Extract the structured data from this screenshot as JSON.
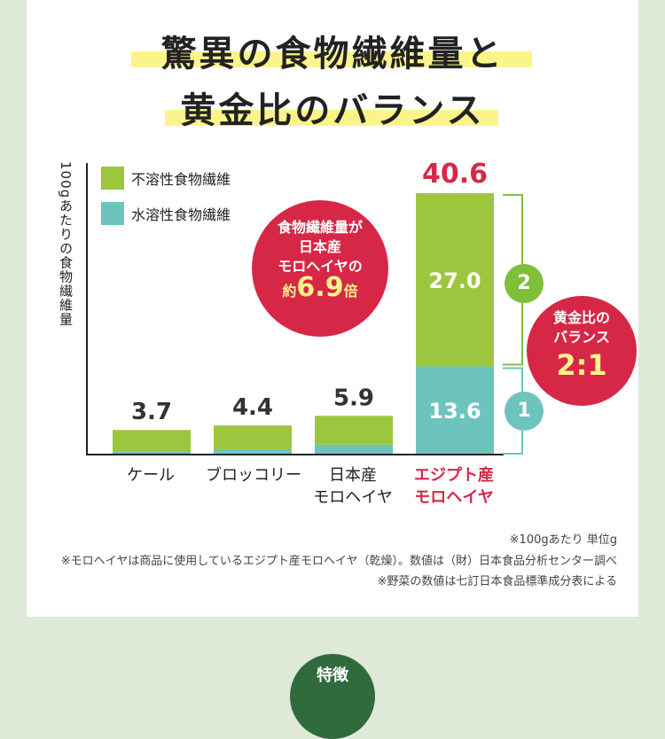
{
  "title": {
    "line1": "驚異の食物繊維量と",
    "line2": "黄金比のバランス"
  },
  "y_axis_label": "100gあたりの食物繊維量",
  "legend": {
    "insoluble": {
      "label": "不溶性食物繊維",
      "color": "#9dc63f"
    },
    "soluble": {
      "label": "水溶性食物繊維",
      "color": "#6cc4bd"
    }
  },
  "callout": {
    "line1": "食物繊維量が",
    "line2": "日本産",
    "line3": "モロヘイヤの",
    "prefix": "約",
    "value": "6.9",
    "suffix": "倍",
    "color": "#d62846"
  },
  "ratio_badge": {
    "line1": "黄金比の",
    "line2": "バランス",
    "value": "2:1",
    "color": "#d62846"
  },
  "bracket_labels": {
    "upper": "2",
    "lower": "1",
    "color": "#7fbf3a"
  },
  "chart_data": {
    "type": "bar",
    "stacked": true,
    "categories": [
      "ケール",
      "ブロッコリー",
      "日本産\nモロヘイヤ",
      "エジプト産\nモロヘイヤ"
    ],
    "highlight_category": "エジプト産\nモロヘイヤ",
    "series": [
      {
        "name": "水溶性食物繊維",
        "values": [
          0.4,
          0.7,
          1.4,
          13.6
        ],
        "color": "#6cc4bd"
      },
      {
        "name": "不溶性食物繊維",
        "values": [
          3.3,
          3.7,
          4.5,
          27.0
        ],
        "color": "#9dc63f"
      }
    ],
    "totals": [
      "3.7",
      "4.4",
      "5.9",
      "40.6"
    ],
    "segment_labels": {
      "insoluble": "27.0",
      "soluble": "13.6"
    },
    "ylim": [
      0,
      41
    ],
    "ylabel": "100gあたりの食物繊維量",
    "legend_position": "top-left"
  },
  "notes": [
    "※100gあたり 単位g",
    "※モロヘイヤは商品に使用しているエジプト産モロヘイヤ（乾燥）。数値は（財）日本食品分析センター調べ",
    "※野菜の数値は七訂日本食品標準成分表による"
  ],
  "feature_label": "特徴"
}
